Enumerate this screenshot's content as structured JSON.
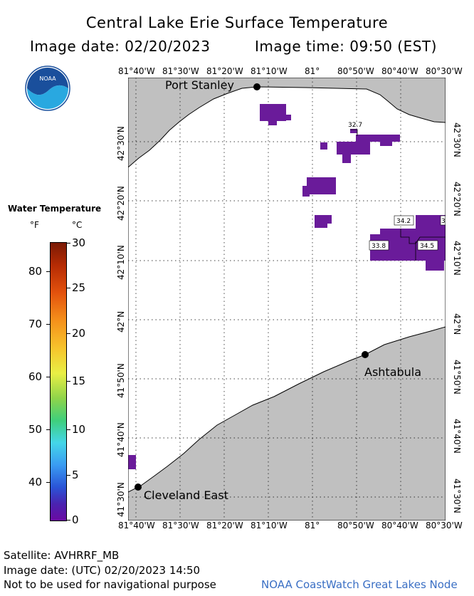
{
  "header": {
    "title": "Central Lake Erie Surface Temperature",
    "date_line": "Image date: 02/20/2023",
    "time_line": "Image time: 09:50 (EST)"
  },
  "logo": {
    "text": "NOAA",
    "icon": "noaa-logo-icon",
    "colors": {
      "blue": "#1a4f9c",
      "light": "#29a8e0"
    }
  },
  "axes": {
    "lon_ticks": [
      "81°40'W",
      "81°30'W",
      "81°20'W",
      "81°10'W",
      "81°",
      "80°50'W",
      "80°40'W",
      "80°30'W"
    ],
    "lat_ticks": [
      "42°30'N",
      "42°20'N",
      "42°10'N",
      "42°N",
      "41°50'N",
      "41°40'N",
      "41°30'N"
    ]
  },
  "legend": {
    "title": "Water Temperature",
    "unit_f": "°F",
    "unit_c": "°C",
    "fahrenheit_labels": [
      "80",
      "70",
      "60",
      "50",
      "40"
    ],
    "celsius_labels": [
      "30",
      "25",
      "20",
      "15",
      "10",
      "5",
      "0"
    ]
  },
  "map": {
    "land_color": "#c0c0c0",
    "water_color": "#ffffff",
    "ice_color": "#6a1b9a",
    "cities": [
      {
        "name": "Port Stanley"
      },
      {
        "name": "Ashtabula"
      },
      {
        "name": "Cleveland East"
      }
    ],
    "temperature_labels": [
      "32.7",
      "34.2",
      "33.8",
      "34.5",
      "3"
    ]
  },
  "footer": {
    "satellite": "Satellite: AVHRRF_MB",
    "utc_date": "Image date: (UTC) 02/20/2023  14:50",
    "disclaimer": "Not to be used for navigational purpose",
    "credit": "NOAA CoastWatch Great Lakes Node"
  }
}
